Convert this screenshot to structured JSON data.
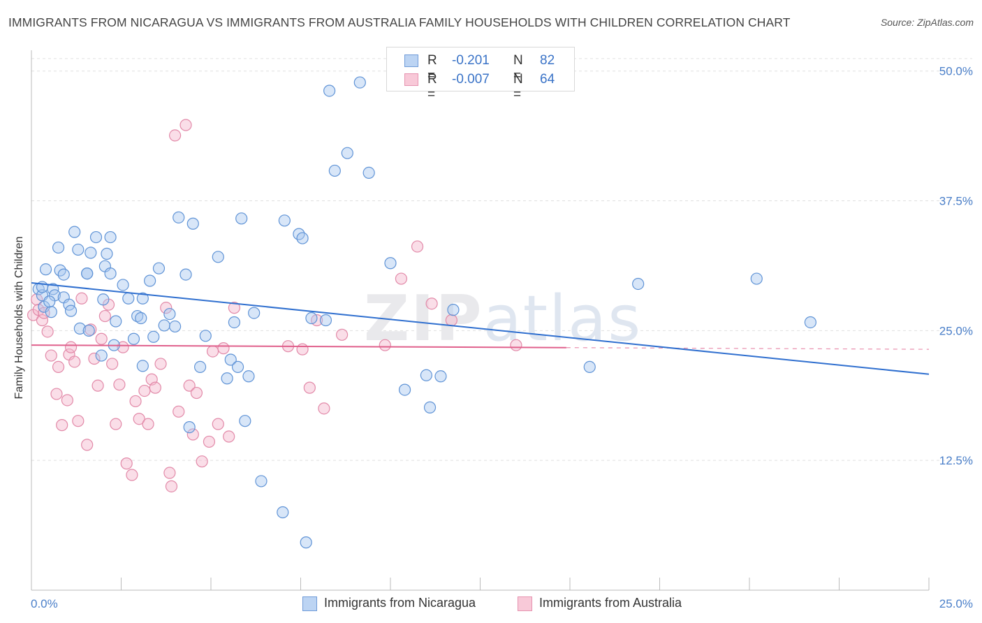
{
  "title": "IMMIGRANTS FROM NICARAGUA VS IMMIGRANTS FROM AUSTRALIA FAMILY HOUSEHOLDS WITH CHILDREN CORRELATION CHART",
  "source": "Source: ZipAtlas.com",
  "watermark": "ZIPatlas",
  "stats": [
    {
      "r_label": "R =",
      "r_value": "-0.201",
      "n_label": "N =",
      "n_value": "82"
    },
    {
      "r_label": "R =",
      "r_value": "-0.007",
      "n_label": "N =",
      "n_value": "64"
    }
  ],
  "chart_data": {
    "type": "scatter",
    "title": "IMMIGRANTS FROM NICARAGUA VS IMMIGRANTS FROM AUSTRALIA FAMILY HOUSEHOLDS WITH CHILDREN CORRELATION CHART",
    "xlabel": "",
    "ylabel": "Family Households with Children",
    "xlim": [
      0,
      25
    ],
    "ylim": [
      0,
      52
    ],
    "x_tick_labels": [
      "0.0%",
      "25.0%"
    ],
    "y_ticks": [
      12.5,
      25.0,
      37.5,
      50.0
    ],
    "y_tick_labels": [
      "12.5%",
      "25.0%",
      "37.5%",
      "50.0%"
    ],
    "grid": true,
    "legend_position": "bottom",
    "colors": {
      "blue_fill": "#a9c7ef",
      "blue_stroke": "#5f93d6",
      "blue_line": "#2f6fcf",
      "pink_fill": "#f4b6cb",
      "pink_stroke": "#e289a8",
      "pink_line": "#e0608c",
      "value_text": "#3a73c7",
      "grid": "#dddddd",
      "axis": "#bbbbbb"
    },
    "series": [
      {
        "name": "Immigrants from Nicaragua",
        "color": "#5f93d6",
        "trend": {
          "x0": 0,
          "y0": 29.6,
          "x1": 25,
          "y1": 20.8,
          "dash_from_x": 25
        },
        "x": [
          0.2,
          0.3,
          0.35,
          0.4,
          0.55,
          0.6,
          0.65,
          0.75,
          0.8,
          0.9,
          1.05,
          1.1,
          1.2,
          1.3,
          1.35,
          1.55,
          1.6,
          1.65,
          1.8,
          1.95,
          2.0,
          2.05,
          2.1,
          2.2,
          2.3,
          2.35,
          2.55,
          2.7,
          2.85,
          2.95,
          3.05,
          3.1,
          3.3,
          3.4,
          3.55,
          3.7,
          3.85,
          4.0,
          4.1,
          4.3,
          4.4,
          4.5,
          4.7,
          5.2,
          5.55,
          5.65,
          5.75,
          5.85,
          5.95,
          6.05,
          6.2,
          6.4,
          7.0,
          7.45,
          7.55,
          7.65,
          7.8,
          8.3,
          8.45,
          8.8,
          9.15,
          9.4,
          10.0,
          10.4,
          11.0,
          11.1,
          11.4,
          11.75,
          15.55,
          16.9,
          20.2,
          21.7,
          0.3,
          0.5,
          0.9,
          1.55,
          2.2,
          3.1,
          4.85,
          5.45,
          7.05,
          8.2
        ],
        "y": [
          29.0,
          28.4,
          27.3,
          30.9,
          26.8,
          29.0,
          28.4,
          33.0,
          30.8,
          28.2,
          27.5,
          26.9,
          34.5,
          32.8,
          25.2,
          30.5,
          25.0,
          32.5,
          34.0,
          22.6,
          28.0,
          31.2,
          32.4,
          30.5,
          23.6,
          25.9,
          29.4,
          28.1,
          24.2,
          26.4,
          26.2,
          21.6,
          29.8,
          24.4,
          31.0,
          25.5,
          26.6,
          25.4,
          35.9,
          30.4,
          15.7,
          35.3,
          21.5,
          32.1,
          22.2,
          25.8,
          21.5,
          35.8,
          16.3,
          20.6,
          26.7,
          10.5,
          7.5,
          34.3,
          33.9,
          4.6,
          26.2,
          48.1,
          40.4,
          42.1,
          48.9,
          40.2,
          31.5,
          19.3,
          20.7,
          17.6,
          20.6,
          27.0,
          21.5,
          29.5,
          30.0,
          25.8,
          29.2,
          27.8,
          30.4,
          30.5,
          34.0,
          28.1,
          24.5,
          20.4,
          35.6,
          26.0
        ]
      },
      {
        "name": "Immigrants from Australia",
        "color": "#e289a8",
        "trend": {
          "x0": 0,
          "y0": 23.6,
          "x1": 25,
          "y1": 23.2,
          "dash_from_x": 14.9
        },
        "x": [
          0.05,
          0.15,
          0.2,
          0.3,
          0.35,
          0.45,
          0.55,
          0.7,
          0.75,
          0.85,
          1.0,
          1.05,
          1.1,
          1.2,
          1.3,
          1.4,
          1.55,
          1.65,
          1.75,
          1.85,
          1.95,
          2.05,
          2.15,
          2.25,
          2.35,
          2.45,
          2.55,
          2.65,
          2.8,
          2.9,
          3.0,
          3.15,
          3.25,
          3.35,
          3.45,
          3.6,
          3.75,
          3.85,
          3.9,
          4.0,
          4.1,
          4.3,
          4.4,
          4.5,
          4.6,
          4.75,
          4.95,
          5.05,
          5.2,
          5.35,
          5.5,
          5.65,
          7.15,
          7.55,
          7.75,
          7.95,
          8.15,
          8.65,
          9.85,
          10.3,
          10.75,
          11.15,
          11.7,
          13.5
        ],
        "y": [
          26.5,
          28.0,
          27.0,
          26.0,
          26.7,
          24.9,
          22.6,
          18.9,
          21.5,
          15.9,
          18.3,
          22.7,
          23.4,
          22.0,
          16.3,
          28.1,
          14.0,
          25.1,
          22.3,
          19.7,
          24.2,
          26.4,
          27.5,
          21.8,
          16.0,
          19.8,
          23.4,
          12.2,
          11.1,
          18.2,
          16.5,
          19.2,
          16.0,
          20.3,
          19.5,
          21.8,
          27.2,
          11.3,
          10.0,
          43.8,
          17.2,
          44.8,
          19.7,
          15.0,
          19.0,
          12.4,
          14.3,
          23.0,
          16.0,
          23.3,
          14.8,
          27.2,
          23.5,
          23.2,
          19.5,
          26.0,
          17.5,
          24.6,
          23.6,
          30.0,
          33.1,
          27.6,
          26.0,
          23.6
        ]
      }
    ]
  },
  "legend": [
    "Immigrants from Nicaragua",
    "Immigrants from Australia"
  ]
}
